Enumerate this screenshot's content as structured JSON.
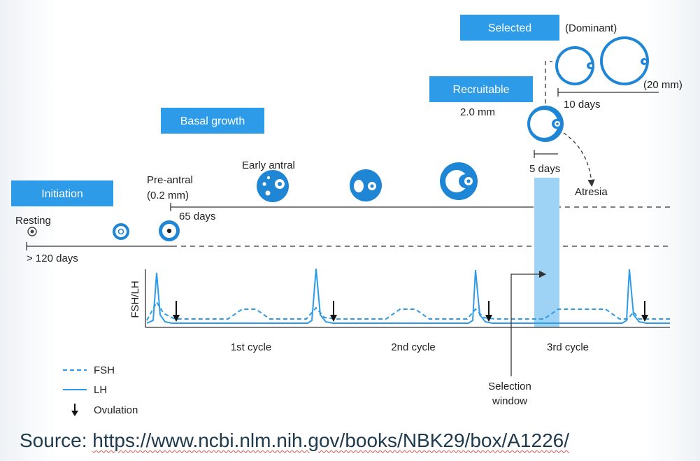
{
  "stages": {
    "initiation": "Initiation",
    "basal_growth": "Basal growth",
    "recruitable": "Recruitable",
    "selected": "Selected"
  },
  "labels": {
    "dominant": "(Dominant)",
    "dominant_size": "(20 mm)",
    "ten_days": "10 days",
    "recruitable_size": "2.0 mm",
    "five_days": "5 days",
    "atresia": "Atresia",
    "early_antral": "Early antral",
    "pre_antral": "Pre-antral",
    "pre_antral_size": "(0.2 mm)",
    "sixty_five_days": "65 days",
    "resting": "Resting",
    "one_twenty_days": "> 120 days"
  },
  "hormone_chart": {
    "ylabel": "FSH/LH",
    "cycles": [
      "1st cycle",
      "2nd cycle",
      "3rd cycle"
    ],
    "selection_window": [
      "Selection",
      "window"
    ],
    "legend": {
      "fsh": "FSH",
      "lh": "LH",
      "ovulation": "Ovulation"
    }
  },
  "source": {
    "prefix": "Source: ",
    "url": "https://www.ncbi.nlm.nih.gov/books/NBK29/box/A1226/"
  },
  "colors": {
    "accent_blue": "#2d9be8",
    "follicle_blue": "#1f86d6",
    "window_blue": "#9fd3f5",
    "line_dark": "#333333"
  }
}
